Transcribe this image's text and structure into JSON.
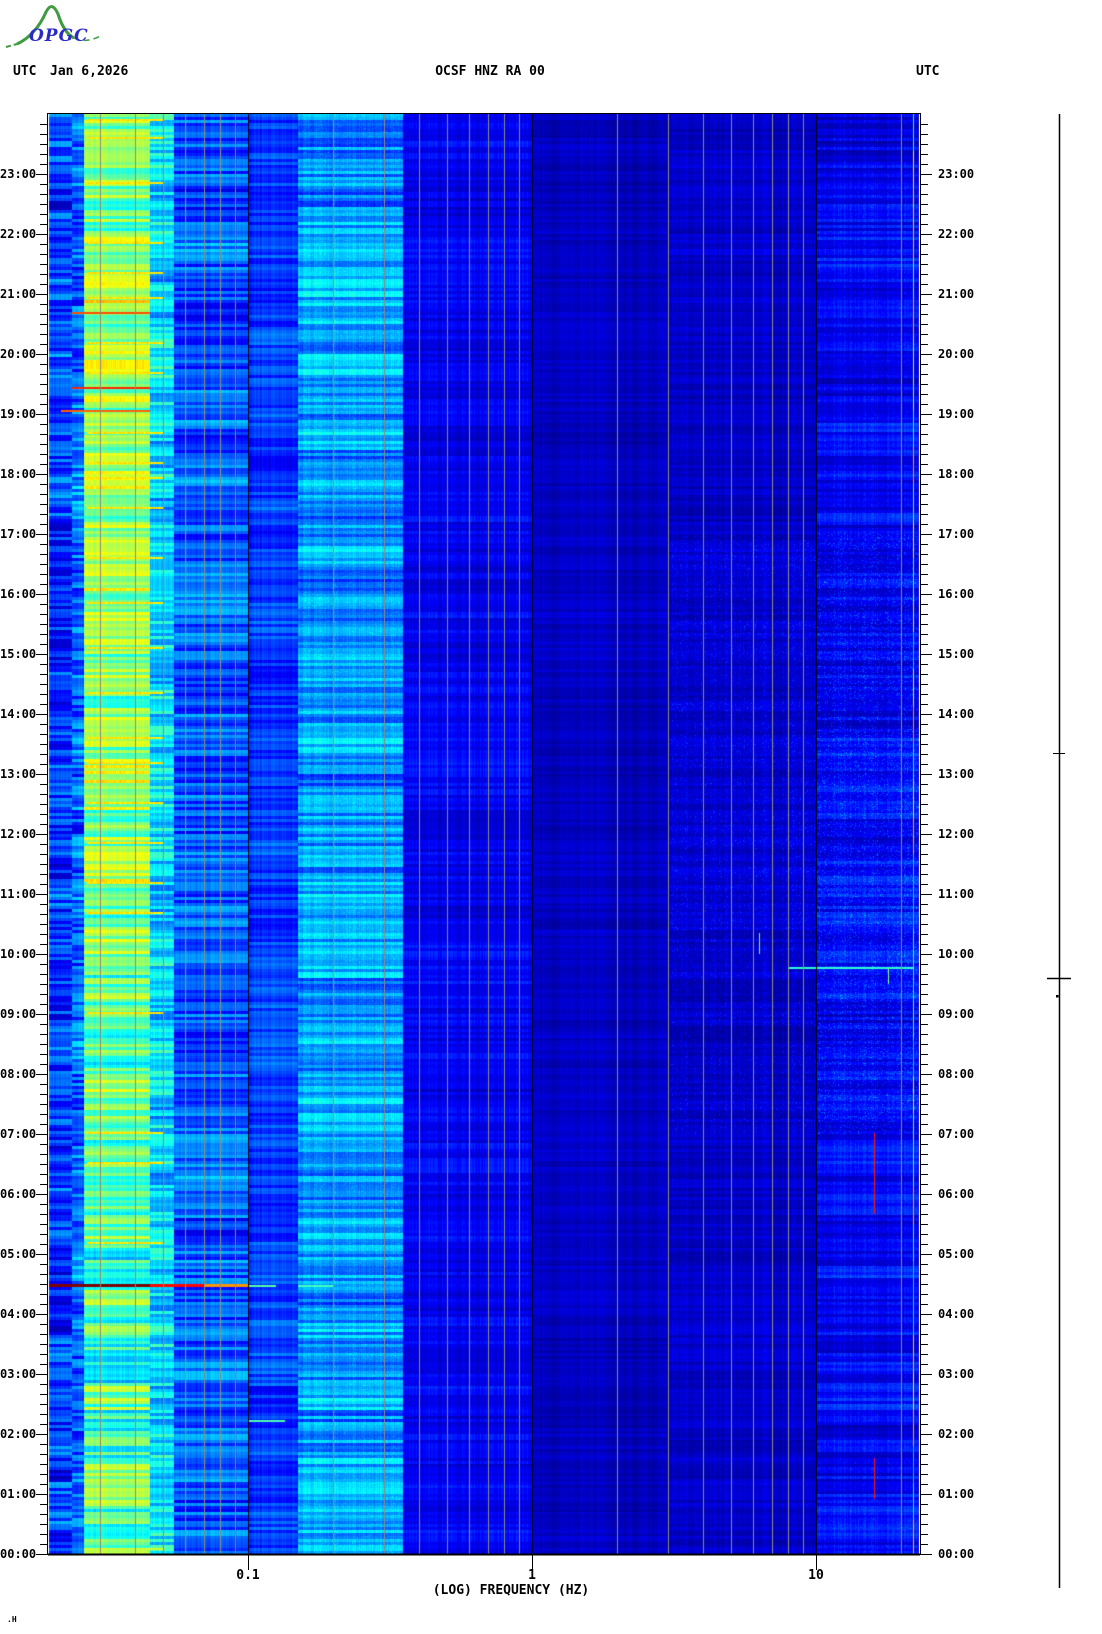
{
  "header": {
    "utc_left": "UTC",
    "date": "Jan 6,2026",
    "station": "OCSF HNZ RA 00",
    "utc_right": "UTC"
  },
  "logo": {
    "text": "OPGC",
    "text_color": "#2a2ac8",
    "mountain_color": "#3f9b3f"
  },
  "x_axis": {
    "title": "(LOG) FREQUENCY (HZ)",
    "ticks": [
      {
        "label": "0.1",
        "hz": 0.1
      },
      {
        "label": "1",
        "hz": 1
      },
      {
        "label": "10",
        "hz": 10
      }
    ]
  },
  "y_axis": {
    "left": [
      "23:00",
      "22:00",
      "21:00",
      "20:00",
      "19:00",
      "18:00",
      "17:00",
      "16:00",
      "15:00",
      "14:00",
      "13:00",
      "12:00",
      "11:00",
      "10:00",
      "09:00",
      "08:00",
      "07:00",
      "06:00",
      "05:00",
      "04:00",
      "03:00",
      "02:00",
      "01:00",
      "00:00"
    ],
    "right": [
      "23:00",
      "22:00",
      "21:00",
      "20:00",
      "19:00",
      "18:00",
      "17:00",
      "16:00",
      "15:00",
      "14:00",
      "13:00",
      "12:00",
      "11:00",
      "10:00",
      "09:00",
      "08:00",
      "07:00",
      "06:00",
      "05:00",
      "04:00",
      "03:00",
      "02:00",
      "01:00",
      "00:00"
    ]
  },
  "corner_mark": ".H",
  "chart_data": {
    "type": "heatmap",
    "title": "OCSF HNZ RA 00 24-hour seismic spectrogram",
    "date_utc": "Jan 6,2026",
    "xlabel": "(LOG) FREQUENCY (HZ)",
    "x_scale": "log",
    "x_range_hz": [
      0.02,
      23
    ],
    "x_ticks_hz": [
      0.1,
      1,
      10
    ],
    "y_axis": "UTC time of day, 00:00 at bottom to 24:00 at top, 1 minute per row",
    "y_tick_interval_min": 60,
    "y_minor_tick_min": 10,
    "colormap": "jet",
    "gridlines": {
      "black_hz": [
        0.1,
        1,
        10
      ],
      "gray_mantissas": [
        2,
        3,
        4,
        5,
        6,
        7,
        8,
        9
      ],
      "gray_color": "#8c8c82"
    },
    "bands": [
      {
        "f0": 0.02,
        "f1": 0.024,
        "base": 0.17,
        "noise": 0.09
      },
      {
        "f0": 0.024,
        "f1": 0.0265,
        "base": 0.24,
        "noise": 0.09
      },
      {
        "f0": 0.0265,
        "f1": 0.045,
        "base": 0.46,
        "noise": 0.11,
        "diurnal": true
      },
      {
        "f0": 0.045,
        "f1": 0.055,
        "base": 0.34,
        "noise": 0.09
      },
      {
        "f0": 0.055,
        "f1": 0.1,
        "base": 0.21,
        "noise": 0.09
      },
      {
        "f0": 0.1,
        "f1": 0.15,
        "base": 0.18,
        "noise": 0.05
      },
      {
        "f0": 0.15,
        "f1": 0.35,
        "base": 0.27,
        "noise": 0.08,
        "speckle": 0.06
      },
      {
        "f0": 0.35,
        "f1": 1.0,
        "base": 0.11,
        "noise": 0.035
      },
      {
        "f0": 1.0,
        "f1": 3.0,
        "base": 0.06,
        "noise": 0.02
      },
      {
        "f0": 3.0,
        "f1": 10.0,
        "base": 0.07,
        "noise": 0.025,
        "speckle": 0.05,
        "sd": true
      },
      {
        "f0": 10.0,
        "f1": 23.0,
        "base": 0.12,
        "noise": 0.05,
        "speckle": 0.07,
        "sd": true
      }
    ],
    "diurnal_boost_by_hour": [
      -0.02,
      -0.02,
      -0.02,
      -0.02,
      -0.02,
      -0.02,
      0.01,
      0.01,
      0.01,
      0.02,
      0.05,
      0.05,
      0.05,
      0.05,
      0.05,
      0.05,
      0.05,
      0.07,
      0.07,
      0.07,
      0.07,
      0.07,
      0.07,
      0.06
    ],
    "events_horizontal": [
      {
        "time": "04:27",
        "f0": 0.02,
        "f1": 0.045,
        "value": 1.0,
        "px": 3
      },
      {
        "time": "04:27",
        "f0": 0.045,
        "f1": 0.07,
        "value": 0.87,
        "px": 3
      },
      {
        "time": "04:27",
        "f0": 0.07,
        "f1": 0.1,
        "value": 0.73,
        "px": 3
      },
      {
        "time": "04:27",
        "f0": 0.1,
        "f1": 0.125,
        "value": 0.46,
        "px": 2
      },
      {
        "time": "04:27",
        "f0": 0.15,
        "f1": 0.2,
        "value": 0.44,
        "px": 2
      },
      {
        "time": "20:40",
        "f0": 0.024,
        "f1": 0.045,
        "value": 0.8,
        "px": 2
      },
      {
        "time": "19:25",
        "f0": 0.024,
        "f1": 0.045,
        "value": 0.84,
        "px": 2
      },
      {
        "time": "19:02",
        "f0": 0.022,
        "f1": 0.045,
        "value": 0.78,
        "px": 2
      },
      {
        "time": "09:45",
        "f0": 8,
        "f1": 22,
        "value": 0.42,
        "px": 2
      },
      {
        "time": "02:12",
        "f0": 0.1,
        "f1": 0.135,
        "value": 0.45,
        "px": 2
      },
      {
        "time": "00:04",
        "f0": 0.0265,
        "f1": 0.05,
        "value": 0.58,
        "px": 2
      }
    ],
    "low_band_peak_times": [
      "23:53",
      "23:35",
      "22:50",
      "21:50",
      "21:20",
      "20:55",
      "20:10",
      "19:40",
      "18:40",
      "18:10",
      "17:55",
      "17:25",
      "16:35",
      "15:50",
      "15:05",
      "14:20",
      "13:35",
      "13:10",
      "12:30",
      "11:50",
      "11:10",
      "10:40",
      "09:00",
      "07:00",
      "06:30",
      "05:10"
    ],
    "events_vertical": [
      {
        "hz": 16,
        "t0": "05:40",
        "t1": "07:00",
        "value": 0.86
      },
      {
        "hz": 16,
        "t0": "00:55",
        "t1": "01:35",
        "value": 0.86
      },
      {
        "hz": 6.3,
        "t0": "10:00",
        "t1": "10:20",
        "value": 0.5
      },
      {
        "hz": 18,
        "t0": "09:30",
        "t1": "09:45",
        "value": 0.5
      }
    ],
    "edge_column_hz": 22
  }
}
